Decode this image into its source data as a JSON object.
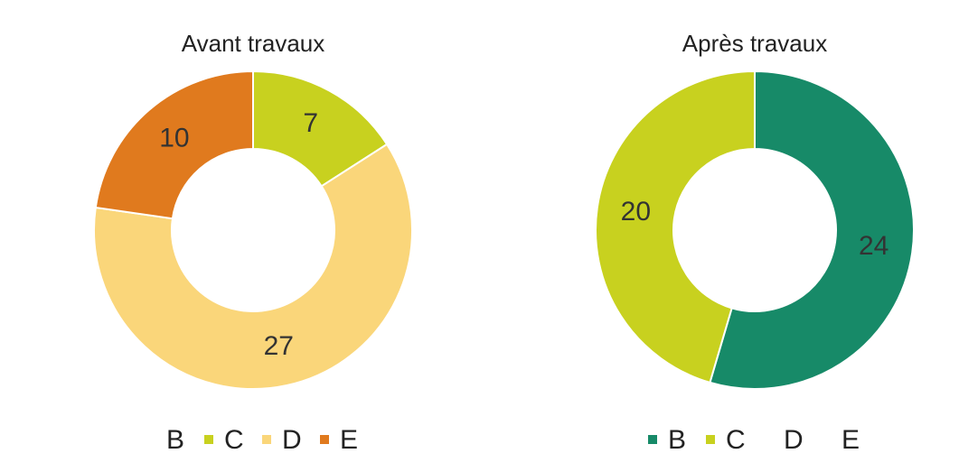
{
  "chart_data": [
    {
      "type": "donut",
      "title": "Avant travaux",
      "categories": [
        "B",
        "C",
        "D",
        "E"
      ],
      "values": [
        null,
        7,
        27,
        10
      ],
      "colors": [
        null,
        "#c8d11f",
        "#fad67a",
        "#e07a1e"
      ]
    },
    {
      "type": "donut",
      "title": "Après travaux",
      "categories": [
        "B",
        "C",
        "D",
        "E"
      ],
      "values": [
        24,
        20,
        null,
        null
      ],
      "colors": [
        "#178a68",
        "#c8d11f",
        null,
        null
      ]
    }
  ]
}
